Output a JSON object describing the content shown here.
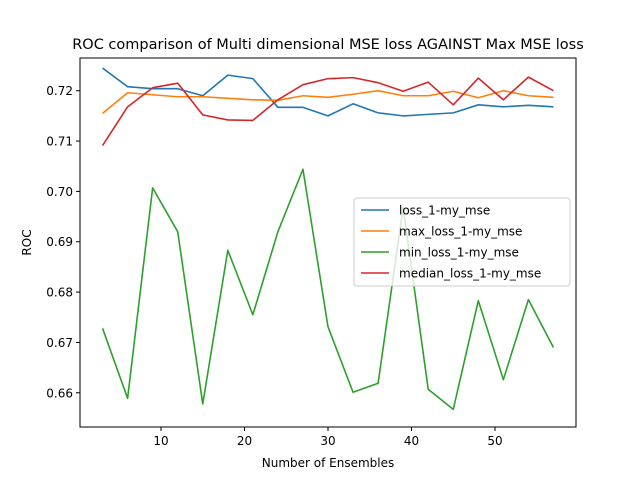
{
  "chart_data": {
    "type": "line",
    "title": "ROC comparison of Multi dimensional MSE loss AGAINST Max MSE loss",
    "xlabel": "Number of Ensembles",
    "ylabel": "ROC",
    "xlim": [
      0.3,
      59.7
    ],
    "ylim": [
      0.6532,
      0.7265
    ],
    "xticks": [
      10,
      20,
      30,
      40,
      50
    ],
    "yticks": [
      0.66,
      0.67,
      0.68,
      0.69,
      0.7,
      0.71,
      0.72
    ],
    "ytick_labels": [
      "0.66",
      "0.67",
      "0.68",
      "0.69",
      "0.70",
      "0.71",
      "0.72"
    ],
    "legend_position": "center-right",
    "x": [
      3,
      6,
      9,
      12,
      15,
      18,
      21,
      24,
      27,
      30,
      33,
      36,
      39,
      42,
      45,
      48,
      51,
      54,
      57
    ],
    "series": [
      {
        "name": "loss_1-my_mse",
        "color": "#1f77b4",
        "values": [
          0.7245,
          0.7208,
          0.7204,
          0.7204,
          0.719,
          0.7231,
          0.7224,
          0.7167,
          0.7167,
          0.715,
          0.7174,
          0.7156,
          0.715,
          0.7153,
          0.7156,
          0.7172,
          0.7168,
          0.7171,
          0.7168
        ]
      },
      {
        "name": "max_loss_1-my_mse",
        "color": "#ff7f0e",
        "values": [
          0.7155,
          0.7196,
          0.7192,
          0.7188,
          0.7188,
          0.7185,
          0.7182,
          0.7181,
          0.719,
          0.7187,
          0.7193,
          0.72,
          0.719,
          0.719,
          0.7199,
          0.7186,
          0.72,
          0.719,
          0.7187
        ]
      },
      {
        "name": "min_loss_1-my_mse",
        "color": "#2ca02c",
        "values": [
          0.6728,
          0.6589,
          0.7007,
          0.692,
          0.6578,
          0.6883,
          0.6755,
          0.692,
          0.7044,
          0.6731,
          0.6601,
          0.6619,
          0.6968,
          0.6607,
          0.6567,
          0.6783,
          0.6626,
          0.6785,
          0.669
        ]
      },
      {
        "name": "median_loss_1-my_mse",
        "color": "#d62728",
        "values": [
          0.7091,
          0.7168,
          0.7206,
          0.7215,
          0.7152,
          0.7142,
          0.7141,
          0.7182,
          0.7212,
          0.7224,
          0.7226,
          0.7216,
          0.7199,
          0.7217,
          0.7172,
          0.7225,
          0.7182,
          0.7227,
          0.72
        ]
      }
    ]
  }
}
